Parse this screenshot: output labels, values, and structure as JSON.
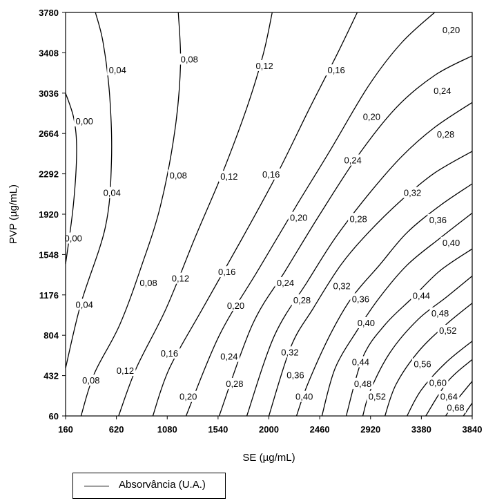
{
  "chart_data": {
    "type": "contour",
    "xlabel": "SE (µg/mL)",
    "ylabel": "PVP (µg/mL)",
    "xlim": [
      160,
      3840
    ],
    "ylim": [
      60,
      3780
    ],
    "x_ticks": [
      "160",
      "620",
      "1080",
      "1540",
      "2000",
      "2460",
      "2920",
      "3380",
      "3840"
    ],
    "y_ticks": [
      "60",
      "432",
      "804",
      "1176",
      "1548",
      "1920",
      "2292",
      "2664",
      "3036",
      "3408",
      "3780"
    ],
    "legend": [
      "Absorvância (U.A.)"
    ],
    "contour_levels": [
      "0,00",
      "0,04",
      "0,08",
      "0,12",
      "0,16",
      "0,20",
      "0,24",
      "0,28",
      "0,32",
      "0,36",
      "0,40",
      "0,44",
      "0,48",
      "0,52",
      "0,56",
      "0,60",
      "0,64",
      "0,68"
    ],
    "contours": [
      {
        "level": "0,00",
        "points": [
          [
            160,
            3036
          ],
          [
            235,
            2800
          ],
          [
            260,
            2500
          ],
          [
            230,
            2000
          ],
          [
            160,
            1460
          ]
        ]
      },
      {
        "level": "0,04",
        "points": [
          [
            430,
            3780
          ],
          [
            500,
            3500
          ],
          [
            560,
            3000
          ],
          [
            575,
            2400
          ],
          [
            520,
            1800
          ],
          [
            300,
            1100
          ],
          [
            160,
            500
          ]
        ]
      },
      {
        "level": "0,08",
        "points": [
          [
            1180,
            3780
          ],
          [
            1200,
            3300
          ],
          [
            1150,
            2700
          ],
          [
            1020,
            2000
          ],
          [
            850,
            1450
          ],
          [
            650,
            900
          ],
          [
            420,
            450
          ],
          [
            300,
            60
          ]
        ]
      },
      {
        "level": "0,12",
        "points": [
          [
            2030,
            3780
          ],
          [
            1950,
            3400
          ],
          [
            1800,
            2900
          ],
          [
            1580,
            2300
          ],
          [
            1330,
            1700
          ],
          [
            1070,
            1050
          ],
          [
            800,
            500
          ],
          [
            640,
            60
          ]
        ]
      },
      {
        "level": "0,16",
        "points": [
          [
            2800,
            3780
          ],
          [
            2620,
            3400
          ],
          [
            2370,
            2900
          ],
          [
            2080,
            2300
          ],
          [
            1760,
            1700
          ],
          [
            1400,
            1050
          ],
          [
            1100,
            500
          ],
          [
            950,
            60
          ]
        ]
      },
      {
        "level": "0,20",
        "points": [
          [
            3500,
            3780
          ],
          [
            3200,
            3500
          ],
          [
            2900,
            3100
          ],
          [
            2550,
            2500
          ],
          [
            2250,
            2000
          ],
          [
            1900,
            1400
          ],
          [
            1550,
            800
          ],
          [
            1250,
            60
          ]
        ]
      },
      {
        "level": "0,24",
        "points": [
          [
            3840,
            3380
          ],
          [
            3500,
            3200
          ],
          [
            3150,
            2900
          ],
          [
            2800,
            2450
          ],
          [
            2450,
            1900
          ],
          [
            2150,
            1400
          ],
          [
            1850,
            900
          ],
          [
            1550,
            60
          ]
        ]
      },
      {
        "level": "0,28",
        "points": [
          [
            3840,
            2950
          ],
          [
            3500,
            2720
          ],
          [
            3200,
            2450
          ],
          [
            2900,
            2100
          ],
          [
            2600,
            1700
          ],
          [
            2350,
            1300
          ],
          [
            2050,
            800
          ],
          [
            1800,
            60
          ]
        ]
      },
      {
        "level": "0,32",
        "points": [
          [
            3840,
            2500
          ],
          [
            3500,
            2300
          ],
          [
            3200,
            2050
          ],
          [
            2900,
            1750
          ],
          [
            2650,
            1450
          ],
          [
            2400,
            1050
          ],
          [
            2200,
            700
          ],
          [
            2000,
            60
          ]
        ]
      },
      {
        "level": "0,36",
        "points": [
          [
            3840,
            2200
          ],
          [
            3550,
            2000
          ],
          [
            3250,
            1750
          ],
          [
            3000,
            1450
          ],
          [
            2750,
            1150
          ],
          [
            2550,
            800
          ],
          [
            2350,
            350
          ],
          [
            2250,
            60
          ]
        ]
      },
      {
        "level": "0,40",
        "points": [
          [
            3840,
            1930
          ],
          [
            3550,
            1700
          ],
          [
            3250,
            1450
          ],
          [
            3000,
            1150
          ],
          [
            2800,
            850
          ],
          [
            2600,
            500
          ],
          [
            2480,
            60
          ]
        ]
      },
      {
        "level": "0,44",
        "points": [
          [
            3840,
            1600
          ],
          [
            3550,
            1400
          ],
          [
            3300,
            1150
          ],
          [
            3050,
            900
          ],
          [
            2850,
            600
          ],
          [
            2700,
            60
          ]
        ]
      },
      {
        "level": "0,48",
        "points": [
          [
            3840,
            1350
          ],
          [
            3600,
            1150
          ],
          [
            3350,
            950
          ],
          [
            3100,
            650
          ],
          [
            2920,
            300
          ],
          [
            2850,
            60
          ]
        ]
      },
      {
        "level": "0,52",
        "points": [
          [
            3840,
            1100
          ],
          [
            3600,
            900
          ],
          [
            3350,
            650
          ],
          [
            3150,
            350
          ],
          [
            3050,
            60
          ]
        ]
      },
      {
        "level": "0,56",
        "points": [
          [
            3840,
            750
          ],
          [
            3600,
            550
          ],
          [
            3380,
            300
          ],
          [
            3250,
            60
          ]
        ]
      },
      {
        "level": "0,60",
        "points": [
          [
            3840,
            580
          ],
          [
            3620,
            380
          ],
          [
            3420,
            60
          ]
        ]
      },
      {
        "level": "0,64",
        "points": [
          [
            3840,
            380
          ],
          [
            3680,
            180
          ],
          [
            3600,
            60
          ]
        ]
      },
      {
        "level": "0,68",
        "points": [
          [
            3840,
            180
          ],
          [
            3760,
            60
          ]
        ]
      }
    ],
    "labels": [
      {
        "text": "0,00",
        "x": 330,
        "y": 2780
      },
      {
        "text": "0,00",
        "x": 230,
        "y": 1700
      },
      {
        "text": "0,04",
        "x": 630,
        "y": 3250
      },
      {
        "text": "0,04",
        "x": 580,
        "y": 2120
      },
      {
        "text": "0,04",
        "x": 330,
        "y": 1090
      },
      {
        "text": "0,08",
        "x": 1280,
        "y": 3350
      },
      {
        "text": "0,08",
        "x": 1180,
        "y": 2280
      },
      {
        "text": "0,08",
        "x": 910,
        "y": 1290
      },
      {
        "text": "0,08",
        "x": 390,
        "y": 390
      },
      {
        "text": "0,12",
        "x": 1960,
        "y": 3290
      },
      {
        "text": "0,12",
        "x": 1640,
        "y": 2270
      },
      {
        "text": "0,12",
        "x": 1200,
        "y": 1330
      },
      {
        "text": "0,12",
        "x": 700,
        "y": 480
      },
      {
        "text": "0,16",
        "x": 2610,
        "y": 3250
      },
      {
        "text": "0,16",
        "x": 2020,
        "y": 2290
      },
      {
        "text": "0,16",
        "x": 1620,
        "y": 1390
      },
      {
        "text": "0,16",
        "x": 1100,
        "y": 640
      },
      {
        "text": "0,20",
        "x": 3650,
        "y": 3620
      },
      {
        "text": "0,20",
        "x": 2930,
        "y": 2820
      },
      {
        "text": "0,20",
        "x": 2270,
        "y": 1890
      },
      {
        "text": "0,20",
        "x": 1700,
        "y": 1080
      },
      {
        "text": "0,20",
        "x": 1270,
        "y": 240
      },
      {
        "text": "0,24",
        "x": 3570,
        "y": 3060
      },
      {
        "text": "0,24",
        "x": 2760,
        "y": 2420
      },
      {
        "text": "0,24",
        "x": 2150,
        "y": 1290
      },
      {
        "text": "0,24",
        "x": 1640,
        "y": 610
      },
      {
        "text": "0,28",
        "x": 3600,
        "y": 2660
      },
      {
        "text": "0,28",
        "x": 2810,
        "y": 1880
      },
      {
        "text": "0,28",
        "x": 2300,
        "y": 1130
      },
      {
        "text": "0,28",
        "x": 1690,
        "y": 360
      },
      {
        "text": "0,32",
        "x": 3300,
        "y": 2120
      },
      {
        "text": "0,32",
        "x": 2660,
        "y": 1260
      },
      {
        "text": "0,32",
        "x": 2190,
        "y": 650
      },
      {
        "text": "0,36",
        "x": 3530,
        "y": 1870
      },
      {
        "text": "0,36",
        "x": 2830,
        "y": 1140
      },
      {
        "text": "0,36",
        "x": 2240,
        "y": 440
      },
      {
        "text": "0,40",
        "x": 3650,
        "y": 1660
      },
      {
        "text": "0,40",
        "x": 2880,
        "y": 920
      },
      {
        "text": "0,40",
        "x": 2320,
        "y": 240
      },
      {
        "text": "0,44",
        "x": 3380,
        "y": 1170
      },
      {
        "text": "0,44",
        "x": 2830,
        "y": 560
      },
      {
        "text": "0,48",
        "x": 3550,
        "y": 1010
      },
      {
        "text": "0,48",
        "x": 2850,
        "y": 360
      },
      {
        "text": "0,52",
        "x": 3620,
        "y": 850
      },
      {
        "text": "0,52",
        "x": 2980,
        "y": 240
      },
      {
        "text": "0,56",
        "x": 3390,
        "y": 540
      },
      {
        "text": "0,60",
        "x": 3530,
        "y": 370
      },
      {
        "text": "0,64",
        "x": 3630,
        "y": 240
      },
      {
        "text": "0,68",
        "x": 3690,
        "y": 140
      }
    ]
  }
}
